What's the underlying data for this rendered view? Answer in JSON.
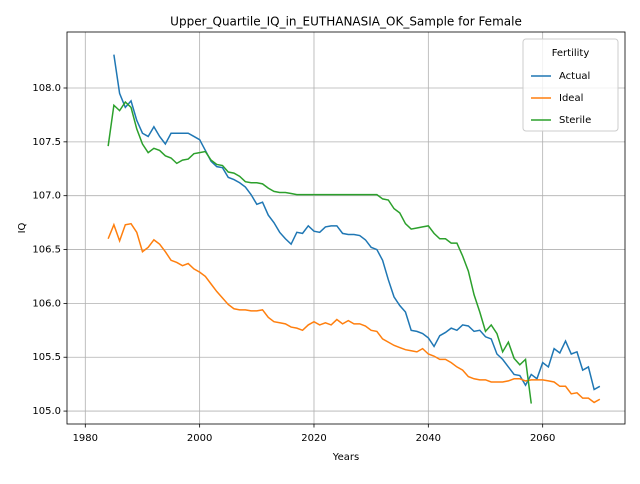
{
  "chart_data": {
    "type": "line",
    "title": "Upper_Quartile_IQ_in_EUTHANASIA_OK_Sample for Female",
    "x_label": "Years",
    "y_label": "IQ",
    "legend_title": "Fertility",
    "legend_loc": "upper right",
    "grid": true,
    "x": [
      1984,
      1985,
      1986,
      1987,
      1988,
      1989,
      1990,
      1991,
      1992,
      1993,
      1994,
      1995,
      1996,
      1997,
      1998,
      1999,
      2000,
      2001,
      2002,
      2003,
      2004,
      2005,
      2006,
      2007,
      2008,
      2009,
      2010,
      2011,
      2012,
      2013,
      2014,
      2015,
      2016,
      2017,
      2018,
      2019,
      2020,
      2021,
      2022,
      2023,
      2024,
      2025,
      2026,
      2027,
      2028,
      2029,
      2030,
      2031,
      2032,
      2033,
      2034,
      2035,
      2036,
      2037,
      2038,
      2039,
      2040,
      2041,
      2042,
      2043,
      2044,
      2045,
      2046,
      2047,
      2048,
      2049,
      2050,
      2051,
      2052,
      2053,
      2054,
      2055,
      2056,
      2057,
      2058,
      2059,
      2060,
      2061,
      2062,
      2063,
      2064,
      2065,
      2066,
      2067,
      2068,
      2069,
      2070
    ],
    "series": [
      {
        "name": "Actual",
        "color": "#1f77b4",
        "values": [
          null,
          108.31,
          107.95,
          107.82,
          107.88,
          107.7,
          107.58,
          107.55,
          107.64,
          107.55,
          107.48,
          107.58,
          107.58,
          107.58,
          107.58,
          107.55,
          107.52,
          107.42,
          107.32,
          107.27,
          107.26,
          107.17,
          107.15,
          107.12,
          107.08,
          107.01,
          106.92,
          106.94,
          106.82,
          106.75,
          106.66,
          106.6,
          106.55,
          106.66,
          106.65,
          106.72,
          106.67,
          106.66,
          106.71,
          106.72,
          106.72,
          106.65,
          106.64,
          106.64,
          106.63,
          106.59,
          106.52,
          106.5,
          106.4,
          106.22,
          106.06,
          105.98,
          105.92,
          105.75,
          105.74,
          105.72,
          105.68,
          105.6,
          105.7,
          105.73,
          105.77,
          105.75,
          105.8,
          105.79,
          105.74,
          105.75,
          105.69,
          105.67,
          105.53,
          105.48,
          105.41,
          105.34,
          105.33,
          105.24,
          105.34,
          105.3,
          105.45,
          105.41,
          105.58,
          105.54,
          105.65,
          105.53,
          105.55,
          105.38,
          105.41,
          105.2,
          105.23
        ]
      },
      {
        "name": "Ideal",
        "color": "#ff7f0e",
        "values": [
          106.6,
          106.73,
          106.58,
          106.73,
          106.74,
          106.66,
          106.48,
          106.52,
          106.59,
          106.55,
          106.48,
          106.4,
          106.38,
          106.35,
          106.37,
          106.32,
          106.29,
          106.25,
          106.18,
          106.11,
          106.05,
          105.99,
          105.95,
          105.94,
          105.94,
          105.93,
          105.93,
          105.94,
          105.87,
          105.83,
          105.82,
          105.81,
          105.78,
          105.77,
          105.75,
          105.8,
          105.83,
          105.8,
          105.82,
          105.8,
          105.85,
          105.81,
          105.84,
          105.81,
          105.81,
          105.79,
          105.75,
          105.74,
          105.67,
          105.64,
          105.61,
          105.59,
          105.57,
          105.56,
          105.55,
          105.58,
          105.53,
          105.51,
          105.48,
          105.48,
          105.45,
          105.41,
          105.38,
          105.32,
          105.3,
          105.29,
          105.29,
          105.27,
          105.27,
          105.27,
          105.28,
          105.3,
          105.3,
          105.28,
          105.29,
          105.29,
          105.29,
          105.28,
          105.27,
          105.23,
          105.23,
          105.16,
          105.17,
          105.12,
          105.12,
          105.08,
          105.11
        ]
      },
      {
        "name": "Sterile",
        "color": "#2ca02c",
        "values": [
          107.46,
          107.84,
          107.79,
          107.87,
          107.82,
          107.62,
          107.48,
          107.4,
          107.44,
          107.42,
          107.37,
          107.35,
          107.3,
          107.33,
          107.34,
          107.39,
          107.4,
          107.41,
          107.33,
          107.29,
          107.28,
          107.22,
          107.21,
          107.18,
          107.13,
          107.12,
          107.12,
          107.11,
          107.07,
          107.04,
          107.03,
          107.03,
          107.02,
          107.01,
          107.01,
          107.01,
          107.01,
          107.01,
          107.01,
          107.01,
          107.01,
          107.01,
          107.01,
          107.01,
          107.01,
          107.01,
          107.01,
          107.01,
          106.97,
          106.96,
          106.88,
          106.84,
          106.74,
          106.69,
          106.7,
          106.71,
          106.72,
          106.65,
          106.6,
          106.6,
          106.56,
          106.56,
          106.44,
          106.3,
          106.08,
          105.92,
          105.74,
          105.8,
          105.72,
          105.55,
          105.64,
          105.49,
          105.43,
          105.48,
          105.07,
          null,
          null,
          null,
          null,
          null,
          null,
          null,
          null,
          null,
          null,
          null,
          null
        ]
      }
    ],
    "xlim": [
      1976.8,
      2074.4
    ],
    "xticks": [
      1980,
      2000,
      2020,
      2040,
      2060
    ],
    "ylim": [
      104.88,
      108.52
    ],
    "yticks": [
      {
        "value": 105,
        "label": "105.0"
      },
      105.5,
      {
        "value": 106,
        "label": "106.0"
      },
      106.5,
      {
        "value": 107,
        "label": "107.0"
      },
      107.5,
      {
        "value": 108,
        "label": "108.0"
      }
    ]
  }
}
